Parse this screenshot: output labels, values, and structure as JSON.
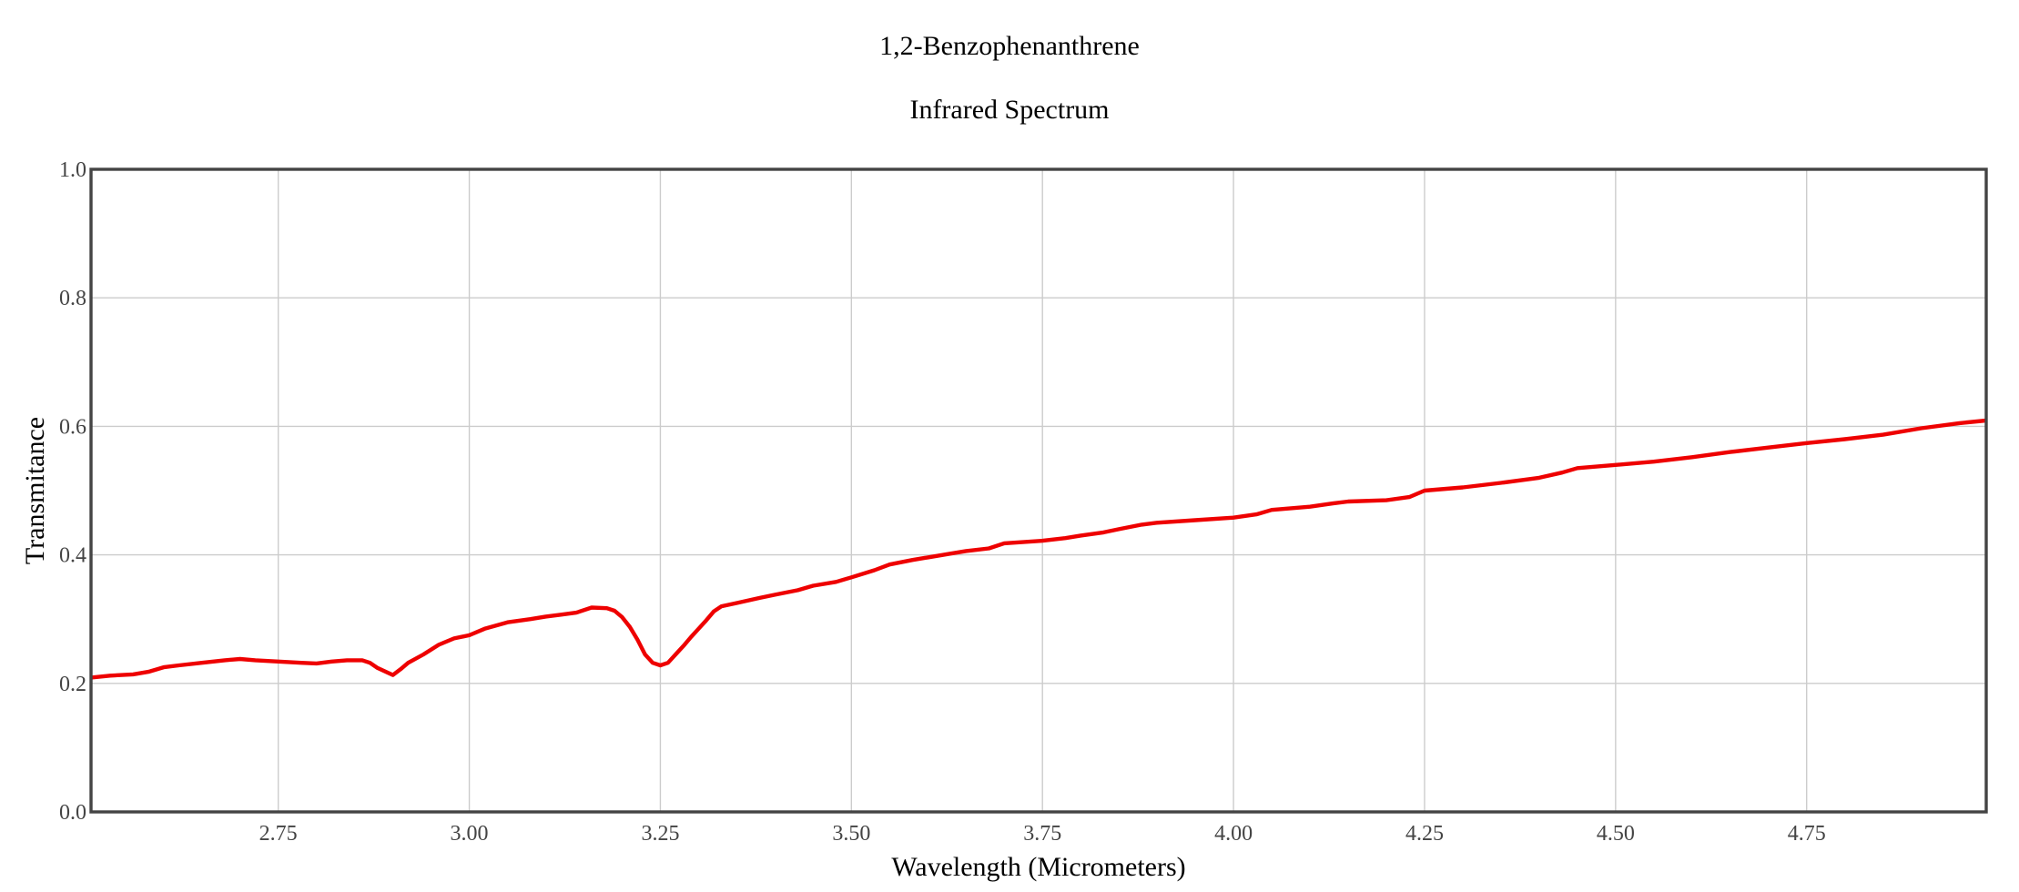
{
  "chart_data": {
    "type": "line",
    "title": "1,2-Benzophenanthrene",
    "subtitle": "Infrared Spectrum",
    "xlabel": "Wavelength (Micrometers)",
    "ylabel": "Transmitance",
    "xlim": [
      2.505,
      4.985
    ],
    "ylim": [
      0.0,
      1.0
    ],
    "x_ticks": [
      2.75,
      3.0,
      3.25,
      3.5,
      3.75,
      4.0,
      4.25,
      4.5,
      4.75
    ],
    "x_tick_labels": [
      "2.75",
      "3.00",
      "3.25",
      "3.50",
      "3.75",
      "4.00",
      "4.25",
      "4.50",
      "4.75"
    ],
    "y_ticks": [
      0.0,
      0.2,
      0.4,
      0.6,
      0.8,
      1.0
    ],
    "y_tick_labels": [
      "0.0",
      "0.2",
      "0.4",
      "0.6",
      "0.8",
      "1.0"
    ],
    "grid": true,
    "legend": false,
    "series": [
      {
        "color": "#ee0000",
        "x": [
          2.505,
          2.53,
          2.56,
          2.58,
          2.6,
          2.62,
          2.65,
          2.68,
          2.7,
          2.72,
          2.75,
          2.78,
          2.8,
          2.82,
          2.84,
          2.86,
          2.87,
          2.88,
          2.9,
          2.91,
          2.92,
          2.94,
          2.96,
          2.98,
          3.0,
          3.02,
          3.05,
          3.08,
          3.1,
          3.12,
          3.14,
          3.16,
          3.18,
          3.19,
          3.2,
          3.21,
          3.22,
          3.23,
          3.24,
          3.25,
          3.26,
          3.27,
          3.28,
          3.29,
          3.3,
          3.31,
          3.32,
          3.33,
          3.35,
          3.38,
          3.4,
          3.43,
          3.45,
          3.48,
          3.5,
          3.53,
          3.55,
          3.58,
          3.6,
          3.63,
          3.65,
          3.68,
          3.7,
          3.75,
          3.78,
          3.8,
          3.83,
          3.85,
          3.88,
          3.9,
          3.95,
          4.0,
          4.03,
          4.05,
          4.1,
          4.13,
          4.15,
          4.2,
          4.23,
          4.25,
          4.3,
          4.35,
          4.4,
          4.43,
          4.45,
          4.5,
          4.55,
          4.6,
          4.65,
          4.7,
          4.75,
          4.8,
          4.85,
          4.9,
          4.95,
          4.985
        ],
        "y": [
          0.209,
          0.212,
          0.214,
          0.218,
          0.225,
          0.228,
          0.232,
          0.236,
          0.238,
          0.236,
          0.234,
          0.232,
          0.231,
          0.234,
          0.236,
          0.236,
          0.232,
          0.224,
          0.213,
          0.222,
          0.232,
          0.245,
          0.26,
          0.27,
          0.275,
          0.285,
          0.295,
          0.3,
          0.304,
          0.307,
          0.31,
          0.318,
          0.317,
          0.313,
          0.303,
          0.288,
          0.268,
          0.245,
          0.232,
          0.228,
          0.232,
          0.245,
          0.258,
          0.272,
          0.285,
          0.298,
          0.312,
          0.32,
          0.325,
          0.333,
          0.338,
          0.345,
          0.352,
          0.358,
          0.365,
          0.376,
          0.385,
          0.392,
          0.396,
          0.402,
          0.406,
          0.41,
          0.418,
          0.422,
          0.426,
          0.43,
          0.435,
          0.44,
          0.447,
          0.45,
          0.454,
          0.458,
          0.463,
          0.47,
          0.475,
          0.48,
          0.483,
          0.485,
          0.49,
          0.5,
          0.505,
          0.512,
          0.52,
          0.528,
          0.535,
          0.54,
          0.545,
          0.552,
          0.56,
          0.567,
          0.574,
          0.58,
          0.587,
          0.597,
          0.605,
          0.609
        ]
      }
    ]
  }
}
